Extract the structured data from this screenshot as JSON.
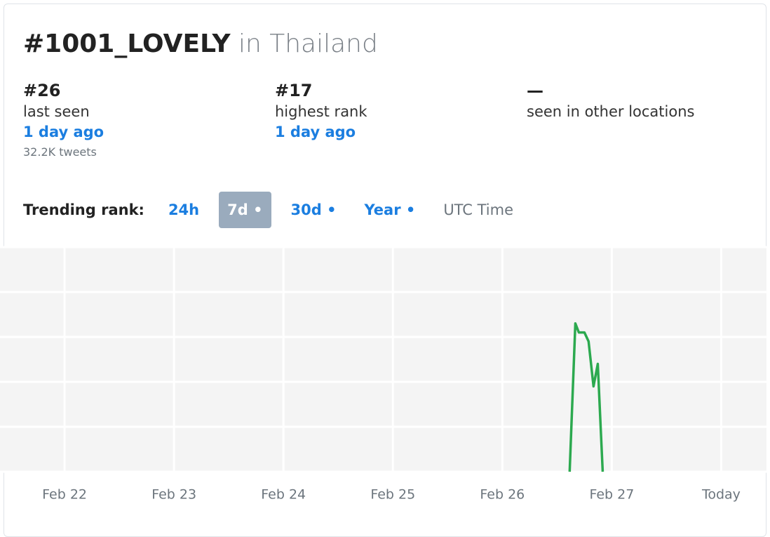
{
  "header": {
    "title": "#1001_LOVELY",
    "location": "in Thailand"
  },
  "stats": [
    {
      "value": "#26",
      "label": "last seen",
      "link": "1 day ago",
      "note": "32.2K tweets"
    },
    {
      "value": "#17",
      "label": "highest rank",
      "link": "1 day ago"
    },
    {
      "value": "—",
      "label": "seen in other locations"
    }
  ],
  "tabs": {
    "label": "Trending rank:",
    "options": [
      "24h",
      "7d •",
      "30d •",
      "Year •",
      "UTC Time"
    ]
  },
  "chart_data": {
    "type": "line",
    "x": [
      26.615,
      26.667,
      26.699,
      26.75,
      26.788,
      26.833,
      26.872,
      26.917
    ],
    "values": [
      50,
      17,
      19,
      19,
      21,
      31,
      26,
      50
    ],
    "color": "#2ca94f",
    "xlim": [
      21.41,
      28.42
    ],
    "xticks": [
      {
        "value": 22,
        "label": "Feb 22"
      },
      {
        "value": 23,
        "label": "Feb 23"
      },
      {
        "value": 24,
        "label": "Feb 24"
      },
      {
        "value": 25,
        "label": "Feb 25"
      },
      {
        "value": 26,
        "label": "Feb 26"
      },
      {
        "value": 27,
        "label": "Feb 27"
      },
      {
        "value": 28,
        "label": "Today"
      }
    ],
    "ylim": [
      50,
      0
    ],
    "yticks": [
      0,
      10,
      20,
      30,
      40,
      50
    ],
    "grid": true
  }
}
